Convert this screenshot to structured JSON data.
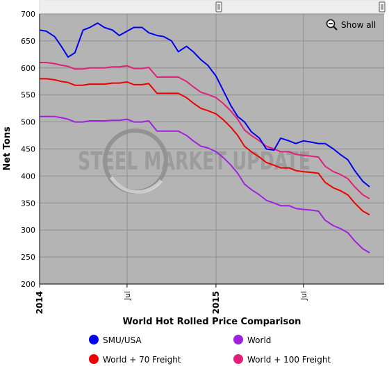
{
  "chart_data": {
    "type": "line",
    "title": "World Hot Rolled Price Comparison",
    "xlabel": "",
    "ylabel": "Net Tons",
    "ylim": [
      200,
      700
    ],
    "yticks": [
      200,
      250,
      300,
      350,
      400,
      450,
      500,
      550,
      600,
      650,
      700
    ],
    "xrange": [
      "2014-01-01",
      "2015-12-15"
    ],
    "xticks": [
      {
        "label": "2014",
        "date": "2014-01-01",
        "bold": true
      },
      {
        "label": "Jul",
        "date": "2014-07-01",
        "bold": false
      },
      {
        "label": "2015",
        "date": "2015-01-01",
        "bold": true
      },
      {
        "label": "Jul",
        "date": "2015-07-01",
        "bold": false
      }
    ],
    "grid": true,
    "legend_position": "bottom",
    "show_all_label": "Show all",
    "watermark": "STEEL MARKET UPDATE",
    "series": [
      {
        "name": "SMU/USA",
        "color": "#0000ee",
        "points": [
          [
            "2014-01-01",
            670
          ],
          [
            "2014-01-15",
            668
          ],
          [
            "2014-02-01",
            658
          ],
          [
            "2014-02-15",
            640
          ],
          [
            "2014-03-01",
            620
          ],
          [
            "2014-03-15",
            628
          ],
          [
            "2014-04-01",
            670
          ],
          [
            "2014-04-15",
            675
          ],
          [
            "2014-05-01",
            683
          ],
          [
            "2014-05-15",
            675
          ],
          [
            "2014-06-01",
            670
          ],
          [
            "2014-06-15",
            660
          ],
          [
            "2014-07-01",
            668
          ],
          [
            "2014-07-15",
            675
          ],
          [
            "2014-08-01",
            675
          ],
          [
            "2014-08-15",
            665
          ],
          [
            "2014-09-01",
            660
          ],
          [
            "2014-09-15",
            658
          ],
          [
            "2014-10-01",
            650
          ],
          [
            "2014-10-15",
            630
          ],
          [
            "2014-11-01",
            640
          ],
          [
            "2014-11-15",
            630
          ],
          [
            "2014-12-01",
            615
          ],
          [
            "2014-12-15",
            605
          ],
          [
            "2015-01-01",
            585
          ],
          [
            "2015-01-15",
            560
          ],
          [
            "2015-02-01",
            530
          ],
          [
            "2015-02-15",
            510
          ],
          [
            "2015-03-01",
            500
          ],
          [
            "2015-03-15",
            482
          ],
          [
            "2015-04-01",
            470
          ],
          [
            "2015-04-15",
            450
          ],
          [
            "2015-05-01",
            448
          ],
          [
            "2015-05-15",
            470
          ],
          [
            "2015-06-01",
            465
          ],
          [
            "2015-06-15",
            460
          ],
          [
            "2015-07-01",
            465
          ],
          [
            "2015-07-15",
            463
          ],
          [
            "2015-08-01",
            460
          ],
          [
            "2015-08-15",
            460
          ],
          [
            "2015-09-01",
            450
          ],
          [
            "2015-09-15",
            440
          ],
          [
            "2015-10-01",
            430
          ],
          [
            "2015-10-15",
            410
          ],
          [
            "2015-11-01",
            390
          ],
          [
            "2015-11-15",
            380
          ]
        ]
      },
      {
        "name": "World",
        "color": "#a020e0",
        "points": [
          [
            "2014-01-01",
            510
          ],
          [
            "2014-01-15",
            510
          ],
          [
            "2014-02-01",
            510
          ],
          [
            "2014-02-15",
            508
          ],
          [
            "2014-03-01",
            505
          ],
          [
            "2014-03-15",
            500
          ],
          [
            "2014-04-01",
            500
          ],
          [
            "2014-04-15",
            502
          ],
          [
            "2014-05-01",
            502
          ],
          [
            "2014-05-15",
            502
          ],
          [
            "2014-06-01",
            503
          ],
          [
            "2014-06-15",
            503
          ],
          [
            "2014-07-01",
            505
          ],
          [
            "2014-07-15",
            500
          ],
          [
            "2014-08-01",
            500
          ],
          [
            "2014-08-15",
            502
          ],
          [
            "2014-09-01",
            483
          ],
          [
            "2014-09-15",
            483
          ],
          [
            "2014-10-01",
            483
          ],
          [
            "2014-10-15",
            483
          ],
          [
            "2014-11-01",
            475
          ],
          [
            "2014-11-15",
            465
          ],
          [
            "2014-12-01",
            455
          ],
          [
            "2014-12-15",
            452
          ],
          [
            "2015-01-01",
            445
          ],
          [
            "2015-01-15",
            435
          ],
          [
            "2015-02-01",
            420
          ],
          [
            "2015-02-15",
            405
          ],
          [
            "2015-03-01",
            385
          ],
          [
            "2015-03-15",
            375
          ],
          [
            "2015-04-01",
            365
          ],
          [
            "2015-04-15",
            355
          ],
          [
            "2015-05-01",
            350
          ],
          [
            "2015-05-15",
            345
          ],
          [
            "2015-06-01",
            345
          ],
          [
            "2015-06-15",
            340
          ],
          [
            "2015-07-01",
            338
          ],
          [
            "2015-07-15",
            337
          ],
          [
            "2015-08-01",
            335
          ],
          [
            "2015-08-15",
            318
          ],
          [
            "2015-09-01",
            308
          ],
          [
            "2015-09-15",
            303
          ],
          [
            "2015-10-01",
            295
          ],
          [
            "2015-10-15",
            280
          ],
          [
            "2015-11-01",
            265
          ],
          [
            "2015-11-15",
            258
          ]
        ]
      },
      {
        "name": "World + 70 Freight",
        "color": "#ee0000",
        "points": [
          [
            "2014-01-01",
            580
          ],
          [
            "2014-01-15",
            580
          ],
          [
            "2014-02-01",
            578
          ],
          [
            "2014-02-15",
            575
          ],
          [
            "2014-03-01",
            573
          ],
          [
            "2014-03-15",
            568
          ],
          [
            "2014-04-01",
            568
          ],
          [
            "2014-04-15",
            570
          ],
          [
            "2014-05-01",
            570
          ],
          [
            "2014-05-15",
            570
          ],
          [
            "2014-06-01",
            572
          ],
          [
            "2014-06-15",
            572
          ],
          [
            "2014-07-01",
            574
          ],
          [
            "2014-07-15",
            569
          ],
          [
            "2014-08-01",
            569
          ],
          [
            "2014-08-15",
            571
          ],
          [
            "2014-09-01",
            553
          ],
          [
            "2014-09-15",
            553
          ],
          [
            "2014-10-01",
            553
          ],
          [
            "2014-10-15",
            553
          ],
          [
            "2014-11-01",
            545
          ],
          [
            "2014-11-15",
            535
          ],
          [
            "2014-12-01",
            525
          ],
          [
            "2014-12-15",
            521
          ],
          [
            "2015-01-01",
            515
          ],
          [
            "2015-01-15",
            505
          ],
          [
            "2015-02-01",
            490
          ],
          [
            "2015-02-15",
            475
          ],
          [
            "2015-03-01",
            455
          ],
          [
            "2015-03-15",
            445
          ],
          [
            "2015-04-01",
            435
          ],
          [
            "2015-04-15",
            425
          ],
          [
            "2015-05-01",
            420
          ],
          [
            "2015-05-15",
            415
          ],
          [
            "2015-06-01",
            415
          ],
          [
            "2015-06-15",
            410
          ],
          [
            "2015-07-01",
            408
          ],
          [
            "2015-07-15",
            407
          ],
          [
            "2015-08-01",
            405
          ],
          [
            "2015-08-15",
            388
          ],
          [
            "2015-09-01",
            378
          ],
          [
            "2015-09-15",
            373
          ],
          [
            "2015-10-01",
            365
          ],
          [
            "2015-10-15",
            350
          ],
          [
            "2015-11-01",
            335
          ],
          [
            "2015-11-15",
            328
          ]
        ]
      },
      {
        "name": "World + 100 Freight",
        "color": "#e0207a",
        "points": [
          [
            "2014-01-01",
            610
          ],
          [
            "2014-01-15",
            610
          ],
          [
            "2014-02-01",
            608
          ],
          [
            "2014-02-15",
            605
          ],
          [
            "2014-03-01",
            603
          ],
          [
            "2014-03-15",
            598
          ],
          [
            "2014-04-01",
            598
          ],
          [
            "2014-04-15",
            600
          ],
          [
            "2014-05-01",
            600
          ],
          [
            "2014-05-15",
            600
          ],
          [
            "2014-06-01",
            602
          ],
          [
            "2014-06-15",
            602
          ],
          [
            "2014-07-01",
            604
          ],
          [
            "2014-07-15",
            599
          ],
          [
            "2014-08-01",
            599
          ],
          [
            "2014-08-15",
            601
          ],
          [
            "2014-09-01",
            583
          ],
          [
            "2014-09-15",
            583
          ],
          [
            "2014-10-01",
            583
          ],
          [
            "2014-10-15",
            583
          ],
          [
            "2014-11-01",
            575
          ],
          [
            "2014-11-15",
            565
          ],
          [
            "2014-12-01",
            555
          ],
          [
            "2014-12-15",
            551
          ],
          [
            "2015-01-01",
            545
          ],
          [
            "2015-01-15",
            535
          ],
          [
            "2015-02-01",
            520
          ],
          [
            "2015-02-15",
            505
          ],
          [
            "2015-03-01",
            485
          ],
          [
            "2015-03-15",
            475
          ],
          [
            "2015-04-01",
            465
          ],
          [
            "2015-04-15",
            455
          ],
          [
            "2015-05-01",
            450
          ],
          [
            "2015-05-15",
            445
          ],
          [
            "2015-06-01",
            445
          ],
          [
            "2015-06-15",
            440
          ],
          [
            "2015-07-01",
            438
          ],
          [
            "2015-07-15",
            437
          ],
          [
            "2015-08-01",
            435
          ],
          [
            "2015-08-15",
            418
          ],
          [
            "2015-09-01",
            408
          ],
          [
            "2015-09-15",
            403
          ],
          [
            "2015-10-01",
            395
          ],
          [
            "2015-10-15",
            380
          ],
          [
            "2015-11-01",
            365
          ],
          [
            "2015-11-15",
            358
          ]
        ]
      }
    ],
    "legend_items": [
      {
        "name": "SMU/USA",
        "color": "#0000ee"
      },
      {
        "name": "World",
        "color": "#a020e0"
      },
      {
        "name": "World + 70 Freight",
        "color": "#ee0000"
      },
      {
        "name": "World + 100 Freight",
        "color": "#e0207a"
      }
    ]
  }
}
